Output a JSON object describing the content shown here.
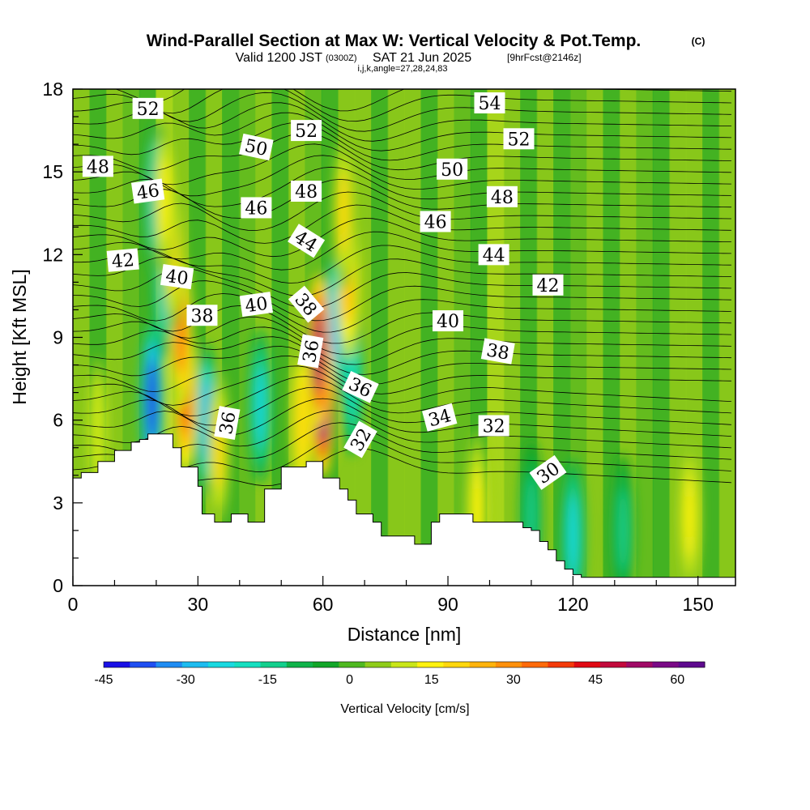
{
  "title": {
    "main": "Wind-Parallel Section at Max W: Vertical Velocity & Pot.Temp.",
    "copyright": "(C)",
    "valid_prefix": "Valid 1200 JST",
    "valid_zulu": "(0300Z)",
    "valid_date": "SAT 21 Jun 2025",
    "fcst": "[9hrFcst@2146z]",
    "indices": "i,j,k,angle=27,28,24,83"
  },
  "chart_data": {
    "type": "heatmap",
    "xlabel": "Distance [nm]",
    "ylabel": "Height [Kft MSL]",
    "xlim": [
      0,
      159
    ],
    "ylim": [
      0,
      18
    ],
    "x_ticks": [
      0,
      30,
      60,
      90,
      120,
      150
    ],
    "y_ticks": [
      0,
      3,
      6,
      9,
      12,
      15,
      18
    ],
    "colorbar": {
      "label": "Vertical Velocity [cm/s]",
      "range": [
        -45,
        65
      ],
      "tick_values": [
        -45,
        -30,
        -15,
        0,
        15,
        30,
        45,
        60
      ],
      "tick_labels": [
        "-45",
        "-30",
        "-15",
        "0",
        "15",
        "30",
        "45",
        "60"
      ],
      "colors": [
        "#1a10e6",
        "#1f4ff2",
        "#1f8cf3",
        "#1dbcf0",
        "#19d9e0",
        "#15dfc0",
        "#13cf8c",
        "#10b34a",
        "#12a628",
        "#4fb820",
        "#8fcc1a",
        "#c9e619",
        "#fff20f",
        "#ffd70d",
        "#ffb30c",
        "#ff900b",
        "#ff6a0a",
        "#f43a0a",
        "#e10a14",
        "#c20a3c",
        "#a00a66",
        "#7a0a86",
        "#5e0a8e"
      ]
    },
    "terrain_kft": [
      [
        0,
        3.9
      ],
      [
        2,
        4.1
      ],
      [
        4,
        4.1
      ],
      [
        6,
        4.5
      ],
      [
        8,
        4.5
      ],
      [
        10,
        4.9
      ],
      [
        12,
        4.9
      ],
      [
        14,
        5.2
      ],
      [
        16,
        5.3
      ],
      [
        18,
        5.5
      ],
      [
        20,
        5.5
      ],
      [
        22,
        5.5
      ],
      [
        24,
        5.0
      ],
      [
        26,
        4.3
      ],
      [
        28,
        4.3
      ],
      [
        30,
        3.6
      ],
      [
        31,
        2.6
      ],
      [
        32,
        2.6
      ],
      [
        34,
        2.3
      ],
      [
        36,
        2.3
      ],
      [
        38,
        2.6
      ],
      [
        40,
        2.6
      ],
      [
        42,
        2.3
      ],
      [
        44,
        2.3
      ],
      [
        46,
        3.5
      ],
      [
        48,
        3.5
      ],
      [
        50,
        4.3
      ],
      [
        52,
        4.3
      ],
      [
        54,
        4.3
      ],
      [
        56,
        4.5
      ],
      [
        58,
        4.5
      ],
      [
        60,
        3.9
      ],
      [
        62,
        3.9
      ],
      [
        64,
        3.5
      ],
      [
        66,
        3.1
      ],
      [
        68,
        2.6
      ],
      [
        70,
        2.6
      ],
      [
        72,
        2.3
      ],
      [
        74,
        1.8
      ],
      [
        76,
        1.8
      ],
      [
        78,
        1.8
      ],
      [
        80,
        1.8
      ],
      [
        82,
        1.5
      ],
      [
        84,
        1.5
      ],
      [
        86,
        2.3
      ],
      [
        88,
        2.6
      ],
      [
        90,
        2.6
      ],
      [
        92,
        2.6
      ],
      [
        94,
        2.6
      ],
      [
        96,
        2.3
      ],
      [
        98,
        2.3
      ],
      [
        100,
        2.3
      ],
      [
        102,
        2.3
      ],
      [
        104,
        2.3
      ],
      [
        106,
        2.3
      ],
      [
        108,
        2.1
      ],
      [
        110,
        2.0
      ],
      [
        112,
        1.6
      ],
      [
        114,
        1.3
      ],
      [
        116,
        0.9
      ],
      [
        118,
        0.6
      ],
      [
        120,
        0.4
      ],
      [
        122,
        0.3
      ],
      [
        159,
        0.3
      ]
    ],
    "updrafts": [
      {
        "x": 60,
        "y": 6.7,
        "w": 62
      },
      {
        "x": 59,
        "y": 8.5,
        "w": 55
      },
      {
        "x": 27,
        "y": 7.0,
        "w": 38
      },
      {
        "x": 26,
        "y": 9.2,
        "w": 32
      },
      {
        "x": 35,
        "y": 5.0,
        "w": 18
      },
      {
        "x": 55,
        "y": 6.0,
        "w": 20
      },
      {
        "x": 66,
        "y": 11.0,
        "w": 22
      },
      {
        "x": 65,
        "y": 13.5,
        "w": 18
      },
      {
        "x": 24,
        "y": 12.0,
        "w": 18
      },
      {
        "x": 22,
        "y": 14.0,
        "w": 15
      },
      {
        "x": 97,
        "y": 2.8,
        "w": 15
      },
      {
        "x": 148,
        "y": 2.5,
        "w": 14
      },
      {
        "x": 6,
        "y": 5.5,
        "w": 12
      }
    ],
    "downdrafts": [
      {
        "x": 19,
        "y": 6.7,
        "w": -42
      },
      {
        "x": 32,
        "y": 6.0,
        "w": -28
      },
      {
        "x": 45,
        "y": 6.5,
        "w": -22
      },
      {
        "x": 63,
        "y": 9.5,
        "w": -30
      },
      {
        "x": 20,
        "y": 14.0,
        "w": -28
      },
      {
        "x": 22,
        "y": 11.0,
        "w": -25
      },
      {
        "x": 67,
        "y": 7.5,
        "w": -20
      },
      {
        "x": 120,
        "y": 1.8,
        "w": -22
      },
      {
        "x": 132,
        "y": 2.0,
        "w": -14
      },
      {
        "x": 110,
        "y": 2.5,
        "w": -12
      }
    ],
    "theta_labels": [
      {
        "x": 18,
        "y": 17.3,
        "t": "52",
        "r": 0
      },
      {
        "x": 6,
        "y": 15.2,
        "t": "48",
        "r": 0
      },
      {
        "x": 18,
        "y": 14.3,
        "t": "46",
        "r": -8
      },
      {
        "x": 12,
        "y": 11.8,
        "t": "42",
        "r": -5
      },
      {
        "x": 25,
        "y": 11.2,
        "t": "40",
        "r": 8
      },
      {
        "x": 31,
        "y": 9.8,
        "t": "38",
        "r": 0
      },
      {
        "x": 37,
        "y": 5.9,
        "t": "36",
        "r": -80
      },
      {
        "x": 44,
        "y": 15.9,
        "t": "50",
        "r": 12
      },
      {
        "x": 44,
        "y": 13.7,
        "t": "46",
        "r": 0
      },
      {
        "x": 44,
        "y": 10.2,
        "t": "40",
        "r": -8
      },
      {
        "x": 56,
        "y": 16.5,
        "t": "52",
        "r": 0
      },
      {
        "x": 56,
        "y": 14.3,
        "t": "48",
        "r": 0
      },
      {
        "x": 56,
        "y": 12.5,
        "t": "44",
        "r": 32
      },
      {
        "x": 56,
        "y": 10.2,
        "t": "38",
        "r": 50
      },
      {
        "x": 57,
        "y": 8.5,
        "t": "36",
        "r": -80
      },
      {
        "x": 69,
        "y": 7.2,
        "t": "36",
        "r": 25
      },
      {
        "x": 69,
        "y": 5.3,
        "t": "32",
        "r": -60
      },
      {
        "x": 88,
        "y": 6.1,
        "t": "34",
        "r": -15
      },
      {
        "x": 87,
        "y": 13.2,
        "t": "46",
        "r": 0
      },
      {
        "x": 91,
        "y": 15.1,
        "t": "50",
        "r": 0
      },
      {
        "x": 100,
        "y": 17.5,
        "t": "54",
        "r": 0
      },
      {
        "x": 107,
        "y": 16.2,
        "t": "52",
        "r": 0
      },
      {
        "x": 103,
        "y": 14.1,
        "t": "48",
        "r": 0
      },
      {
        "x": 101,
        "y": 12.0,
        "t": "44",
        "r": 0
      },
      {
        "x": 90,
        "y": 9.6,
        "t": "40",
        "r": 0
      },
      {
        "x": 102,
        "y": 8.5,
        "t": "38",
        "r": 10
      },
      {
        "x": 101,
        "y": 5.8,
        "t": "32",
        "r": 0
      },
      {
        "x": 114,
        "y": 4.1,
        "t": "30",
        "r": -35
      },
      {
        "x": 114,
        "y": 10.9,
        "t": "42",
        "r": 0
      }
    ]
  }
}
